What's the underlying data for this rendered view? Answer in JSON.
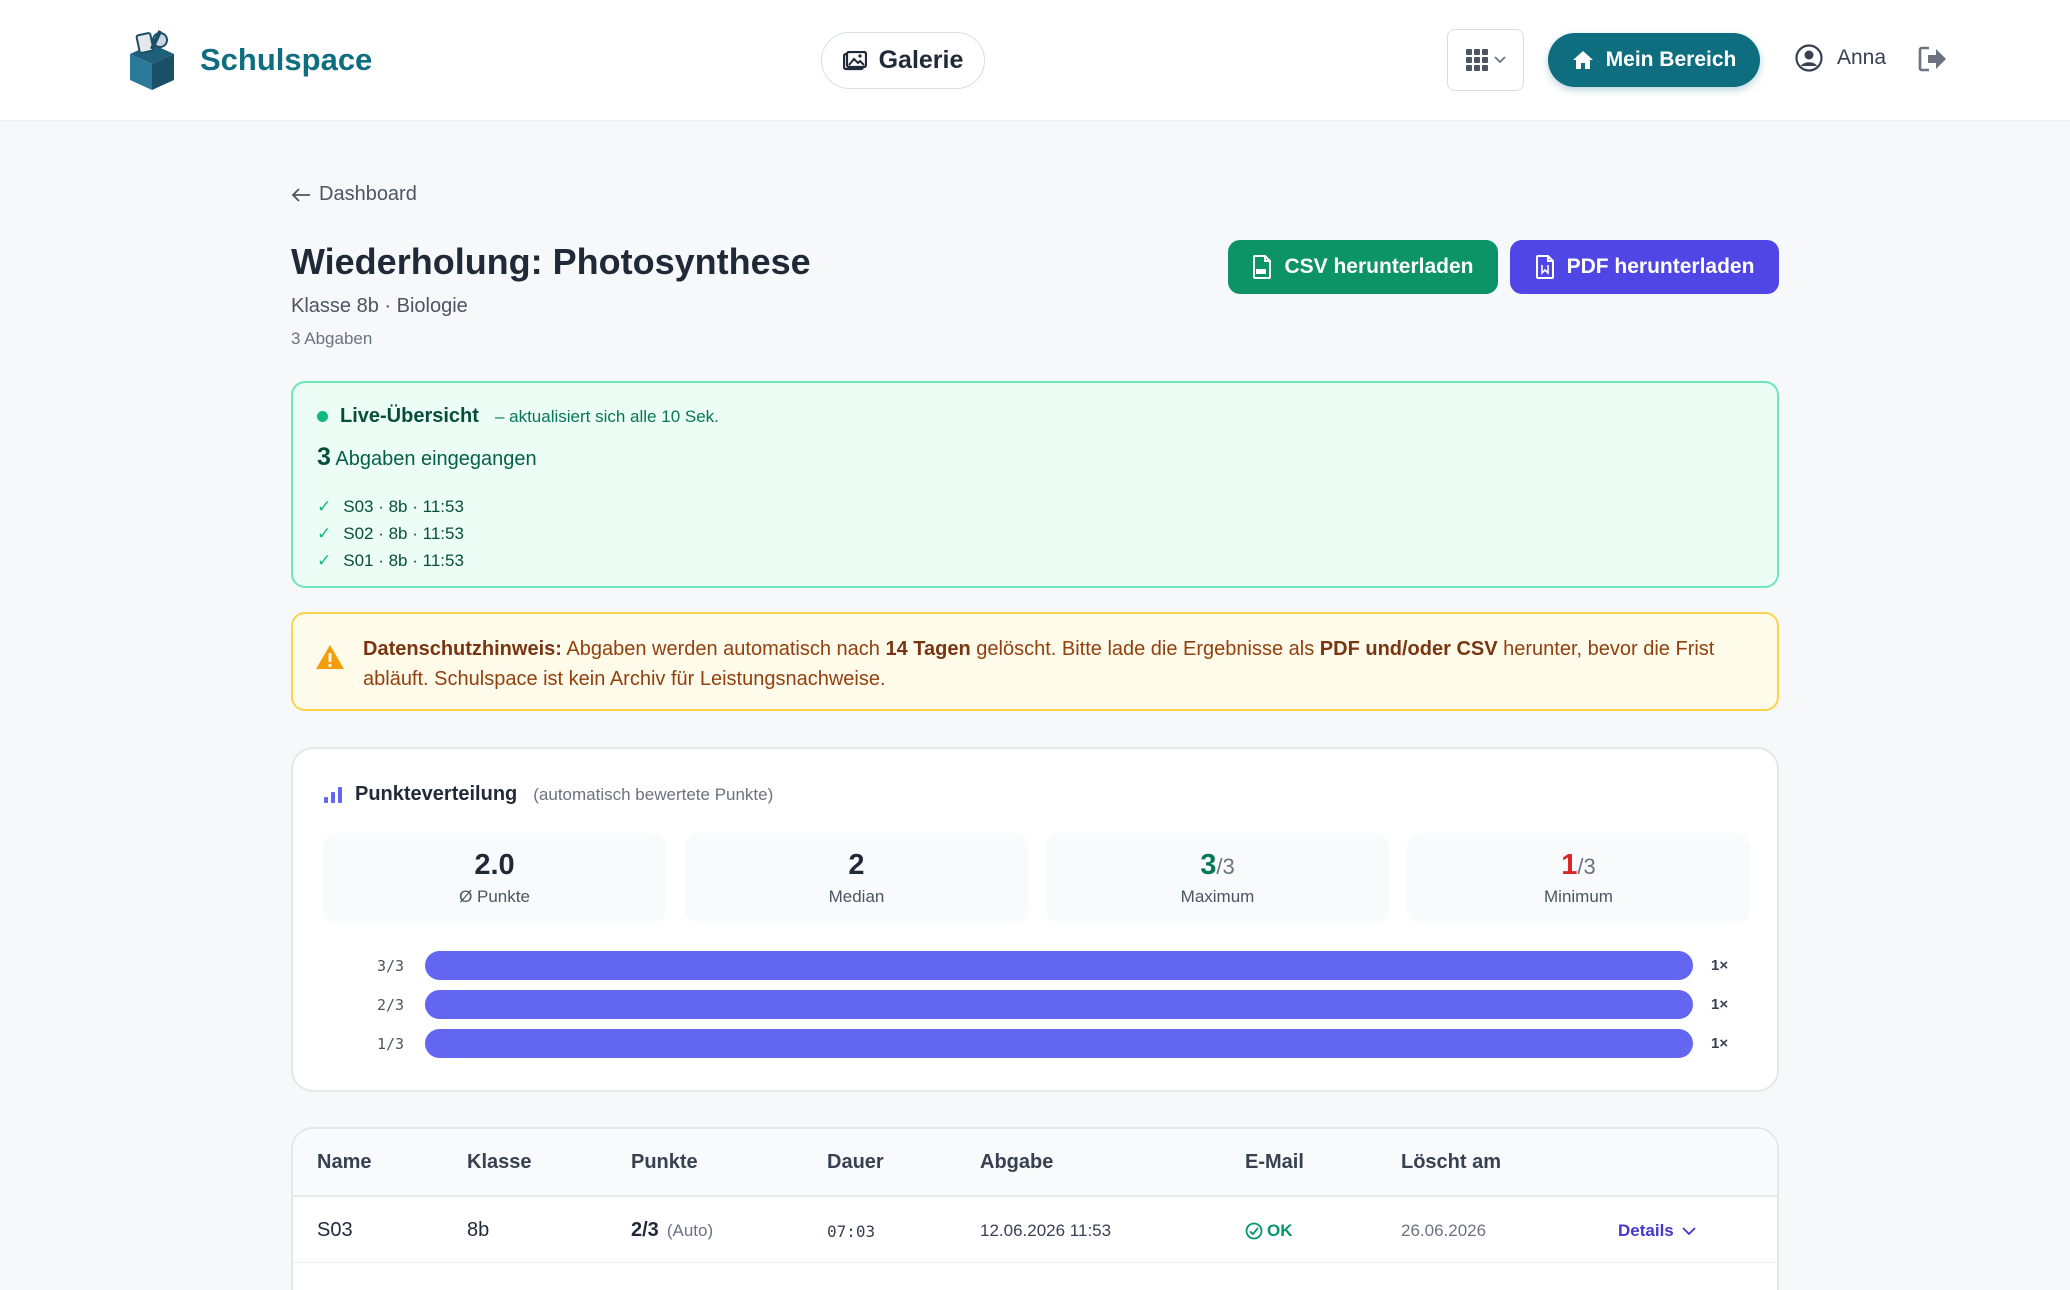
{
  "header": {
    "brand": "Schulspace",
    "gallery_label": "Galerie",
    "mein_bereich_label": "Mein Bereich",
    "user_name": "Anna"
  },
  "page": {
    "back_label": "Dashboard",
    "title": "Wiederholung: Photosynthese",
    "subtitle": "Klasse 8b · Biologie",
    "submissions_count": "3 Abgaben",
    "csv_button": "CSV herunterladen",
    "pdf_button": "PDF herunterladen"
  },
  "live": {
    "title": "Live-Übersicht",
    "note": "– aktualisiert sich alle 10 Sek.",
    "count_number": "3",
    "count_text": "Abgaben eingegangen",
    "items": [
      "S03 · 8b · 11:53",
      "S02 · 8b · 11:53",
      "S01 · 8b · 11:53"
    ]
  },
  "warning": {
    "lead": "Datenschutzhinweis:",
    "part1": " Abgaben werden automatisch nach ",
    "bold1": "14 Tagen",
    "part2": " gelöscht. Bitte lade die Ergebnisse als ",
    "bold2": "PDF und/oder CSV",
    "part3": " herunter, bevor die Frist abläuft. Schulspace ist kein Archiv für Leistungsnachweise."
  },
  "distribution": {
    "title": "Punkteverteilung",
    "note": "(automatisch bewertete Punkte)",
    "stats": [
      {
        "value": "2.0",
        "suffix": "",
        "label": "Ø Punkte",
        "color": "#1f2937"
      },
      {
        "value": "2",
        "suffix": "",
        "label": "Median",
        "color": "#1f2937"
      },
      {
        "value": "3",
        "suffix": "/3",
        "label": "Maximum",
        "color": "#047857"
      },
      {
        "value": "1",
        "suffix": "/3",
        "label": "Minimum",
        "color": "#dc2626"
      }
    ]
  },
  "chart_data": {
    "type": "bar",
    "orientation": "horizontal",
    "categories": [
      "3/3",
      "2/3",
      "1/3"
    ],
    "values": [
      1,
      1,
      1
    ],
    "value_labels": [
      "1×",
      "1×",
      "1×"
    ],
    "xlim": [
      0,
      1
    ],
    "bar_color": "#6366f1"
  },
  "table": {
    "columns": [
      "Name",
      "Klasse",
      "Punkte",
      "Dauer",
      "Abgabe",
      "E-Mail",
      "Löscht am"
    ],
    "rows": [
      {
        "name": "S03",
        "klasse": "8b",
        "punkte": "2/3",
        "punkte_note": "(Auto)",
        "dauer": "07:03",
        "abgabe": "12.06.2026 11:53",
        "email": "OK",
        "loescht": "26.06.2026",
        "details": "Details"
      }
    ]
  }
}
